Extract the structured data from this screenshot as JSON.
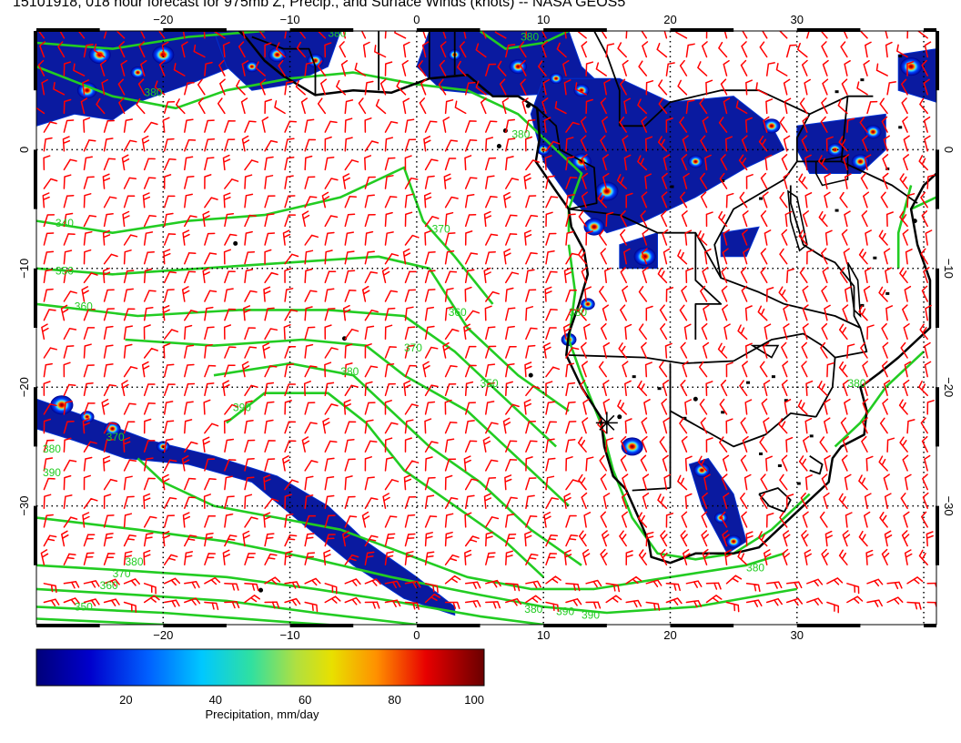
{
  "title": "15101918, 018 hour forecast for 975mb Z, Precip., and Surface Winds (knots) -- NASA GEOS5",
  "map": {
    "lon_range": [
      -30,
      41
    ],
    "lat_range": [
      -40,
      10
    ],
    "lon_ticks": [
      {
        "value": -20,
        "label": "−20"
      },
      {
        "value": -10,
        "label": "−10"
      },
      {
        "value": 0,
        "label": "0"
      },
      {
        "value": 10,
        "label": "10"
      },
      {
        "value": 20,
        "label": "20"
      },
      {
        "value": 30,
        "label": "30"
      }
    ],
    "lat_ticks": [
      {
        "value": 0,
        "label": "0"
      },
      {
        "value": -10,
        "label": "−10"
      },
      {
        "value": -20,
        "label": "−20"
      },
      {
        "value": -30,
        "label": "−30"
      }
    ],
    "grid": "dotted",
    "marker": {
      "lon": 15,
      "lat": -23
    }
  },
  "contours": {
    "color": "#22cc22",
    "labels": [
      {
        "text": "340",
        "lon": -28.5,
        "lat": -6.5
      },
      {
        "text": "350",
        "lon": -28.5,
        "lat": -10.5
      },
      {
        "text": "360",
        "lon": -27,
        "lat": -13.5
      },
      {
        "text": "370",
        "lon": -24.5,
        "lat": -24.5
      },
      {
        "text": "380",
        "lon": -29.5,
        "lat": -25.5
      },
      {
        "text": "390",
        "lon": -29.5,
        "lat": -27.5
      },
      {
        "text": "390",
        "lon": -14.5,
        "lat": -22
      },
      {
        "text": "380",
        "lon": -6,
        "lat": -19
      },
      {
        "text": "370",
        "lon": -1,
        "lat": -17
      },
      {
        "text": "360",
        "lon": 2.5,
        "lat": -14
      },
      {
        "text": "350",
        "lon": 5,
        "lat": -20
      },
      {
        "text": "370",
        "lon": 1.2,
        "lat": -7
      },
      {
        "text": "380",
        "lon": -21.5,
        "lat": 4.5
      },
      {
        "text": "380",
        "lon": -7,
        "lat": 9.5
      },
      {
        "text": "380",
        "lon": 8.2,
        "lat": 9.2
      },
      {
        "text": "380",
        "lon": 7.5,
        "lat": 1
      },
      {
        "text": "380",
        "lon": 12,
        "lat": -14
      },
      {
        "text": "380",
        "lon": 26,
        "lat": -35.5
      },
      {
        "text": "380",
        "lon": -23,
        "lat": -35
      },
      {
        "text": "370",
        "lon": -24,
        "lat": -36
      },
      {
        "text": "360",
        "lon": -25,
        "lat": -37
      },
      {
        "text": "350",
        "lon": -27,
        "lat": -38.8
      },
      {
        "text": "380",
        "lon": 8.5,
        "lat": -39
      },
      {
        "text": "390",
        "lon": 11,
        "lat": -39.2
      },
      {
        "text": "390",
        "lon": 13,
        "lat": -39.5
      },
      {
        "text": "380",
        "lon": 34,
        "lat": -20
      }
    ]
  },
  "colorbar": {
    "ticks": [
      {
        "value": 20,
        "label": "20"
      },
      {
        "value": 40,
        "label": "40"
      },
      {
        "value": 60,
        "label": "60"
      },
      {
        "value": 80,
        "label": "80"
      },
      {
        "value": 100,
        "label": "100"
      }
    ],
    "min": 0,
    "max": 100,
    "label": "Precipitation, mm/day"
  },
  "colors": {
    "wind_barbs": "#ff0000",
    "contours": "#22cc22",
    "coastline": "#000000"
  }
}
